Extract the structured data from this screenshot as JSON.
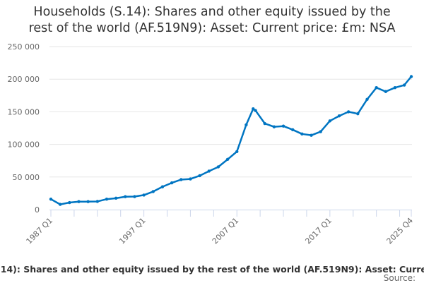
{
  "chart_data": {
    "type": "line",
    "title": "Households (S.14): Shares and other equity issued by the rest of the world (AF.519N9): Asset: Current price: £m: NSA",
    "title_lines": [
      "Households (S.14): Shares and other equity issued by the",
      "rest of the world (AF.519N9): Asset: Current price: £m: NSA"
    ],
    "xlabel": "",
    "ylabel": "",
    "ylim": [
      0,
      250000
    ],
    "yticks": [
      0,
      50000,
      100000,
      150000,
      200000,
      250000
    ],
    "ytick_labels": [
      "0",
      "50 000",
      "100 000",
      "150 000",
      "200 000",
      "250 000"
    ],
    "xrange": [
      "1987 Q1",
      "2025 Q4"
    ],
    "xtick_labels": [
      "1987 Q1",
      "1997 Q1",
      "2007 Q1",
      "2017 Q1",
      "2025 Q4"
    ],
    "grid": true,
    "color": "#0075c2",
    "x": [
      "1987 Q1",
      "1988 Q1",
      "1989 Q1",
      "1990 Q1",
      "1991 Q1",
      "1992 Q1",
      "1993 Q1",
      "1994 Q1",
      "1995 Q1",
      "1996 Q1",
      "1997 Q1",
      "1998 Q1",
      "1999 Q1",
      "2000 Q1",
      "2001 Q1",
      "2002 Q1",
      "2003 Q1",
      "2004 Q1",
      "2005 Q1",
      "2006 Q1",
      "2007 Q1",
      "2008 Q1",
      "2008 Q4",
      "2009 Q1",
      "2010 Q1",
      "2011 Q1",
      "2012 Q1",
      "2013 Q1",
      "2014 Q1",
      "2015 Q1",
      "2016 Q1",
      "2017 Q1",
      "2018 Q1",
      "2019 Q1",
      "2020 Q1",
      "2021 Q1",
      "2022 Q1",
      "2023 Q1",
      "2024 Q1",
      "2025 Q1",
      "2025 Q4"
    ],
    "values": [
      16000,
      8000,
      10800,
      12200,
      12200,
      12500,
      16000,
      17500,
      19800,
      20000,
      22300,
      27700,
      35000,
      41000,
      46000,
      47000,
      52000,
      59000,
      65500,
      77000,
      89000,
      130000,
      154500,
      152000,
      132000,
      127000,
      128000,
      122500,
      116000,
      114000,
      119500,
      136000,
      143700,
      150000,
      147000,
      169000,
      187000,
      181000,
      187000,
      191000,
      204000
    ]
  },
  "footer": {
    "caption": ".14): Shares and other equity issued by the rest of the world (AF.519N9): Asset: Curre",
    "source": "Source:"
  }
}
